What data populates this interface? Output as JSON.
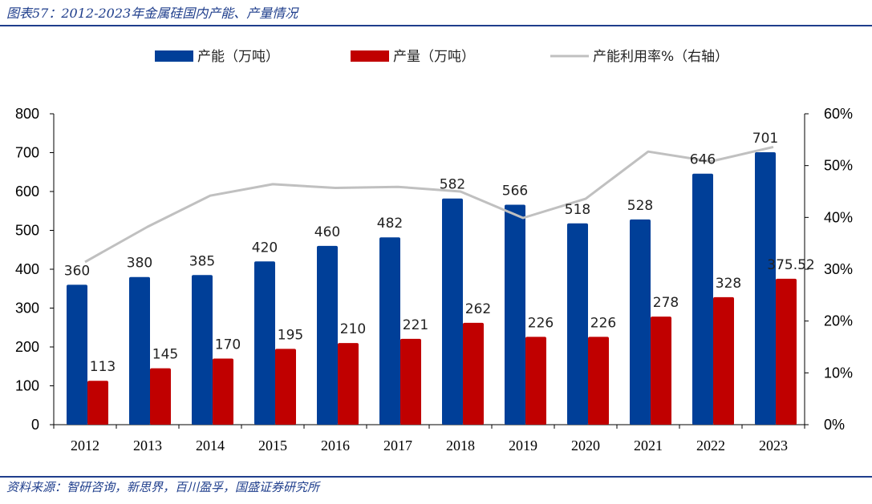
{
  "header": {
    "title": "图表57：2012-2023年金属硅国内产能、产量情况"
  },
  "footer": {
    "source": "资料来源：智研咨询，新思界，百川盈孚，国盛证券研究所"
  },
  "colors": {
    "capacity": "#003f98",
    "output": "#c00000",
    "utilization": "#c0c0c0",
    "rule": "#1f3e8c"
  },
  "chart_data": {
    "type": "bar",
    "categories": [
      "2012",
      "2013",
      "2014",
      "2015",
      "2016",
      "2017",
      "2018",
      "2019",
      "2020",
      "2021",
      "2022",
      "2023"
    ],
    "series": [
      {
        "name": "产能（万吨）",
        "type": "bar",
        "axis": "left",
        "values": [
          360,
          380,
          385,
          420,
          460,
          482,
          582,
          566,
          518,
          528,
          646,
          701
        ],
        "labels": [
          "360",
          "380",
          "385",
          "420",
          "460",
          "482",
          "582",
          "566",
          "518",
          "528",
          "646",
          "701"
        ]
      },
      {
        "name": "产量（万吨）",
        "type": "bar",
        "axis": "left",
        "values": [
          113,
          145,
          170,
          195,
          210,
          221,
          262,
          226,
          226,
          278,
          328,
          375.52
        ],
        "labels": [
          "113",
          "145",
          "170",
          "195",
          "210",
          "221",
          "262",
          "226",
          "226",
          "278",
          "328",
          "375.52"
        ]
      },
      {
        "name": "产能利用率%（右轴）",
        "type": "line",
        "axis": "right",
        "values": [
          31.4,
          38.2,
          44.2,
          46.4,
          45.7,
          45.9,
          45.0,
          39.9,
          43.6,
          52.7,
          50.8,
          53.6
        ]
      }
    ],
    "yticks_left": [
      "0",
      "100",
      "200",
      "300",
      "400",
      "500",
      "600",
      "700",
      "800"
    ],
    "yticks_right": [
      "0%",
      "10%",
      "20%",
      "30%",
      "40%",
      "50%",
      "60%"
    ],
    "ylim_left": [
      0,
      800
    ],
    "ylim_right": [
      0,
      60
    ],
    "grid": false,
    "legend_position": "top"
  }
}
